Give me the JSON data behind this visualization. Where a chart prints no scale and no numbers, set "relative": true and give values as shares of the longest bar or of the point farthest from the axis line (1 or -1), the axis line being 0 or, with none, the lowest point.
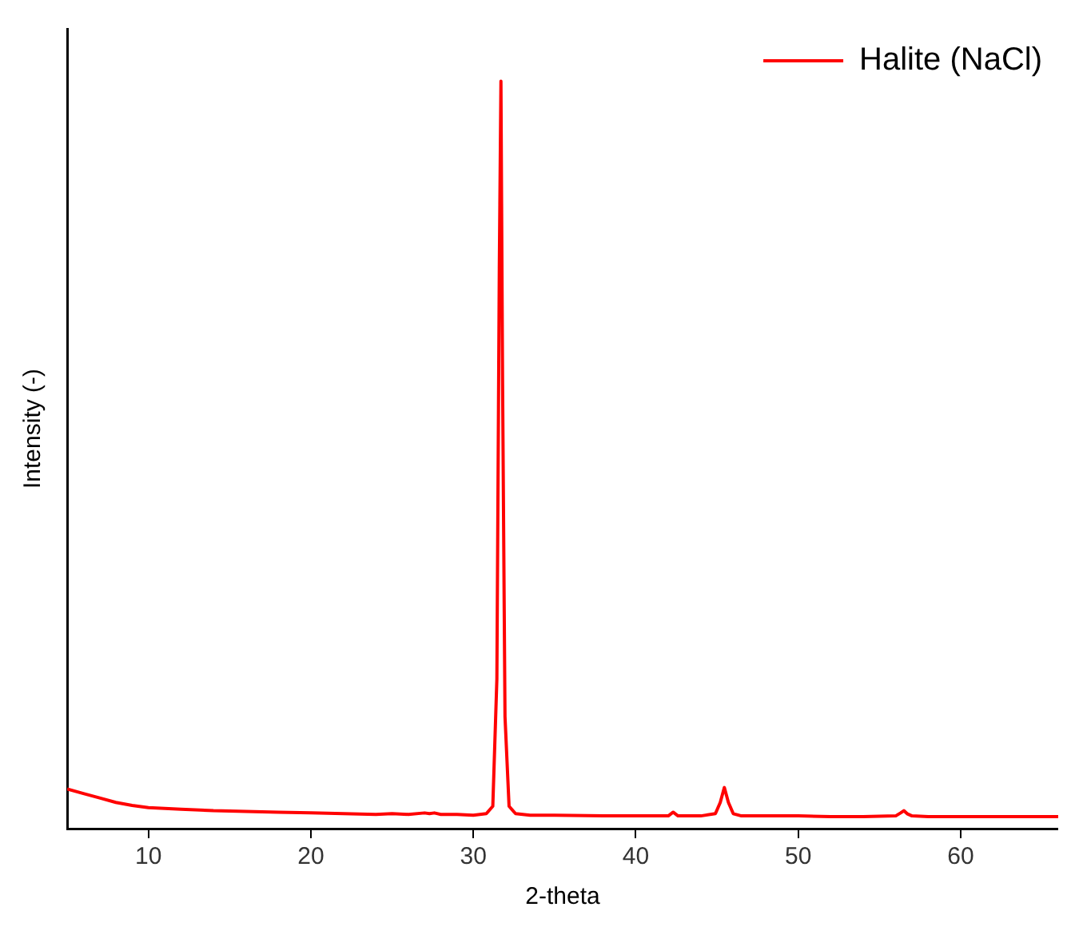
{
  "chart_data": {
    "type": "line",
    "xlabel": "2-theta",
    "ylabel": "Intensity (-)",
    "relative": true,
    "xlim": [
      5,
      66
    ],
    "xticks": [
      10,
      20,
      30,
      40,
      50,
      60
    ],
    "legend": "top right",
    "grid": false,
    "marker": "none",
    "series": [
      {
        "name": "Halite (NaCl)",
        "color": "#ff0000",
        "x": [
          5,
          6,
          7,
          8,
          9,
          10,
          12,
          14,
          16,
          18,
          20,
          22,
          24,
          25,
          26,
          27,
          27.3,
          27.6,
          28,
          29,
          30,
          30.8,
          31.2,
          31.45,
          31.6,
          31.7,
          31.8,
          31.95,
          32.2,
          32.6,
          33.5,
          35,
          38,
          40,
          42,
          42.3,
          42.6,
          44,
          44.9,
          45.2,
          45.45,
          45.7,
          46,
          46.5,
          48,
          50,
          52,
          54,
          56,
          56.3,
          56.5,
          56.7,
          57,
          58,
          60,
          62,
          64,
          66
        ],
        "values": [
          0.053,
          0.047,
          0.041,
          0.035,
          0.031,
          0.028,
          0.026,
          0.024,
          0.023,
          0.022,
          0.021,
          0.02,
          0.019,
          0.02,
          0.019,
          0.021,
          0.02,
          0.021,
          0.019,
          0.019,
          0.018,
          0.02,
          0.03,
          0.2,
          0.75,
          1,
          0.6,
          0.15,
          0.03,
          0.02,
          0.018,
          0.018,
          0.017,
          0.017,
          0.017,
          0.022,
          0.017,
          0.017,
          0.02,
          0.035,
          0.055,
          0.035,
          0.02,
          0.017,
          0.017,
          0.017,
          0.016,
          0.016,
          0.017,
          0.021,
          0.024,
          0.02,
          0.017,
          0.016,
          0.016,
          0.016,
          0.016,
          0.016
        ]
      }
    ]
  }
}
